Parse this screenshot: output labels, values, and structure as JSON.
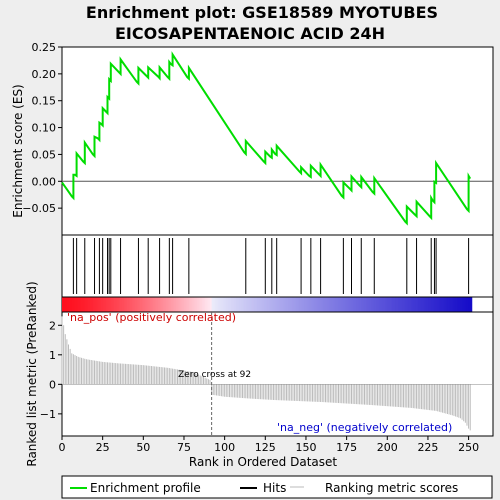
{
  "chart_data": {
    "type": "line",
    "title_line1": "Enrichment plot: GSE18589 MYOTUBES",
    "title_line2": "EICOSAPENTAENOIC ACID 24H",
    "xlabel": "Rank in Ordered Dataset",
    "ylabel_top": "Enrichment score (ES)",
    "ylabel_bottom": "Ranked list metric (PreRanked)",
    "xlim": [
      0,
      265
    ],
    "es_ylim": [
      -0.1,
      0.25
    ],
    "metric_ylim": [
      -1.75,
      2.45
    ],
    "x_ticks": [
      0,
      25,
      50,
      75,
      100,
      125,
      150,
      175,
      200,
      225,
      250
    ],
    "es_ticks": [
      -0.05,
      0.0,
      0.05,
      0.1,
      0.15,
      0.2,
      0.25
    ],
    "es_tick_labels": [
      "−0.05",
      "0.00",
      "0.05",
      "0.10",
      "0.15",
      "0.20",
      "0.25"
    ],
    "metric_ticks": [
      -1,
      0,
      1,
      2
    ],
    "metric_tick_labels": [
      "−1",
      "0",
      "1",
      "2"
    ],
    "n_genes": 252,
    "zero_cross": 92,
    "zero_cross_label": "Zero cross at 92",
    "pos_label": "'na_pos' (positively correlated)",
    "neg_label": "'na_neg' (negatively correlated)",
    "hits": [
      7,
      9,
      14,
      20,
      23,
      25,
      28,
      29,
      30,
      36,
      47,
      53,
      60,
      66,
      68,
      78,
      113,
      125,
      129,
      132,
      147,
      153,
      159,
      173,
      178,
      184,
      192,
      212,
      218,
      227,
      229,
      230,
      250
    ],
    "es_curve": {
      "x": [
        0,
        3,
        6,
        7,
        7,
        8,
        9,
        9,
        13,
        14,
        14,
        19,
        20,
        20,
        22,
        23,
        23,
        24,
        25,
        25,
        27,
        28,
        28,
        29,
        29,
        30,
        30,
        35,
        36,
        36,
        46,
        47,
        47,
        52,
        53,
        53,
        59,
        60,
        60,
        65,
        66,
        66,
        67,
        68,
        68,
        77,
        78,
        78,
        112,
        113,
        113,
        124,
        125,
        125,
        128,
        129,
        129,
        131,
        132,
        132,
        146,
        147,
        147,
        152,
        153,
        153,
        158,
        159,
        159,
        172,
        173,
        173,
        177,
        178,
        178,
        183,
        184,
        184,
        191,
        192,
        192,
        211,
        212,
        212,
        217,
        218,
        218,
        226,
        227,
        227,
        228,
        229,
        229,
        230,
        230,
        249,
        250,
        250,
        251
      ],
      "y": [
        -0.002,
        -0.015,
        -0.028,
        -0.031,
        0.012,
        0.012,
        0.01,
        0.052,
        0.037,
        0.034,
        0.072,
        0.05,
        0.047,
        0.083,
        0.08,
        0.077,
        0.109,
        0.107,
        0.104,
        0.136,
        0.13,
        0.127,
        0.157,
        0.154,
        0.19,
        0.187,
        0.219,
        0.203,
        0.2,
        0.227,
        0.185,
        0.182,
        0.211,
        0.196,
        0.193,
        0.212,
        0.195,
        0.192,
        0.212,
        0.194,
        0.191,
        0.222,
        0.218,
        0.216,
        0.236,
        0.194,
        0.191,
        0.211,
        0.054,
        0.051,
        0.075,
        0.037,
        0.034,
        0.055,
        0.046,
        0.044,
        0.059,
        0.051,
        0.049,
        0.066,
        0.018,
        0.015,
        0.026,
        0.01,
        0.008,
        0.029,
        0.013,
        0.01,
        0.031,
        -0.027,
        -0.03,
        -0.002,
        -0.014,
        -0.017,
        0.009,
        -0.008,
        -0.011,
        0.008,
        -0.02,
        -0.023,
        0.006,
        -0.075,
        -0.078,
        -0.047,
        -0.062,
        -0.065,
        -0.038,
        -0.065,
        -0.068,
        -0.031,
        -0.036,
        -0.039,
        -0.001,
        -0.003,
        0.034,
        -0.052,
        -0.055,
        0.01,
        0.005
      ]
    },
    "metric_profile": {
      "x": [
        0,
        2,
        4,
        6,
        10,
        15,
        25,
        35,
        50,
        65,
        80,
        91,
        92,
        100,
        115,
        130,
        160,
        190,
        215,
        230,
        240,
        245,
        248,
        250,
        251,
        252
      ],
      "y": [
        2.3,
        1.7,
        1.35,
        1.05,
        0.93,
        0.85,
        0.76,
        0.71,
        0.65,
        0.56,
        0.42,
        0.15,
        -0.35,
        -0.42,
        -0.48,
        -0.53,
        -0.6,
        -0.7,
        -0.8,
        -0.9,
        -1.05,
        -1.15,
        -1.3,
        -1.5,
        -1.56,
        -1.58
      ]
    },
    "legend": [
      {
        "label": "Enrichment profile",
        "color": "#00dd00"
      },
      {
        "label": "Hits",
        "color": "#000000"
      },
      {
        "label": "Ranking metric scores",
        "color": "#bbbbbb"
      }
    ],
    "colors": {
      "es_line": "#00dd00",
      "hit": "#000000",
      "metric_bar": "#bbbbbb",
      "pos_text": "#cc0000",
      "neg_text": "#0000cc",
      "grid_zero": "#555555"
    }
  }
}
